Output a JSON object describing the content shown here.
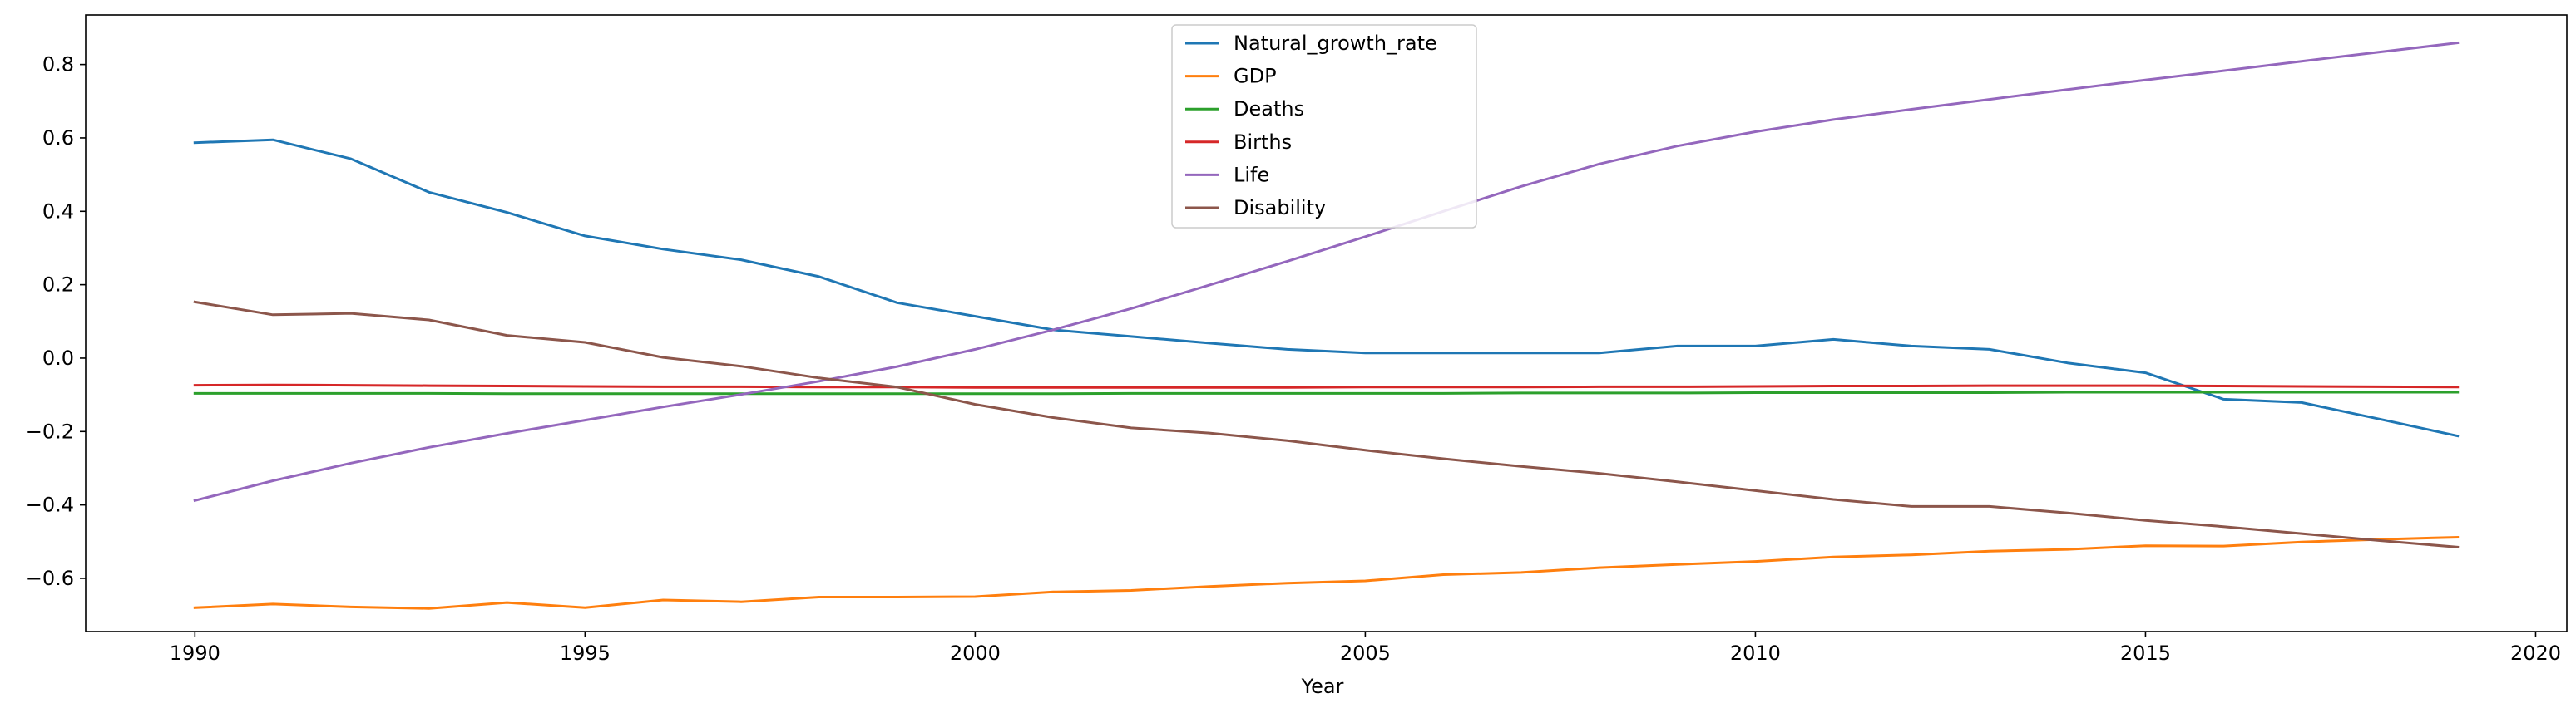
{
  "chart_data": {
    "type": "line",
    "title": "",
    "xlabel": "Year",
    "ylabel": "",
    "xlim": [
      1988.6,
      2020.4
    ],
    "ylim": [
      -0.745,
      0.935
    ],
    "xticks": [
      1990,
      1995,
      2000,
      2005,
      2010,
      2015,
      2020
    ],
    "yticks": [
      -0.6,
      -0.4,
      -0.2,
      0.0,
      0.2,
      0.4,
      0.6,
      0.8
    ],
    "ytick_labels": [
      "−0.6",
      "−0.4",
      "−0.2",
      "0.0",
      "0.2",
      "0.4",
      "0.6",
      "0.8"
    ],
    "grid": false,
    "legend_position": "top-center",
    "x": [
      1990,
      1991,
      1992,
      1993,
      1994,
      1995,
      1996,
      1997,
      1998,
      1999,
      2000,
      2001,
      2002,
      2003,
      2004,
      2005,
      2006,
      2007,
      2008,
      2009,
      2010,
      2011,
      2012,
      2013,
      2014,
      2015,
      2016,
      2017,
      2018,
      2019
    ],
    "series": [
      {
        "name": "Natural_growth_rate",
        "color": "#1f77b4",
        "values": [
          0.587,
          0.595,
          0.543,
          0.452,
          0.397,
          0.333,
          0.297,
          0.268,
          0.222,
          0.151,
          0.114,
          0.077,
          0.059,
          0.041,
          0.024,
          0.014,
          0.014,
          0.014,
          0.014,
          0.033,
          0.033,
          0.051,
          0.033,
          0.024,
          -0.013,
          -0.04,
          -0.112,
          -0.121,
          -0.166,
          -0.212
        ]
      },
      {
        "name": "GDP",
        "color": "#ff7f0e",
        "values": [
          -0.68,
          -0.67,
          -0.678,
          -0.682,
          -0.666,
          -0.68,
          -0.659,
          -0.664,
          -0.651,
          -0.651,
          -0.65,
          -0.637,
          -0.633,
          -0.622,
          -0.613,
          -0.607,
          -0.59,
          -0.584,
          -0.571,
          -0.562,
          -0.554,
          -0.542,
          -0.536,
          -0.526,
          -0.521,
          -0.511,
          -0.512,
          -0.501,
          -0.494,
          -0.488
        ]
      },
      {
        "name": "Deaths",
        "color": "#2ca02c",
        "values": [
          -0.096,
          -0.096,
          -0.096,
          -0.096,
          -0.097,
          -0.097,
          -0.097,
          -0.097,
          -0.097,
          -0.097,
          -0.097,
          -0.097,
          -0.096,
          -0.096,
          -0.096,
          -0.096,
          -0.096,
          -0.095,
          -0.095,
          -0.095,
          -0.094,
          -0.094,
          -0.094,
          -0.094,
          -0.093,
          -0.093,
          -0.093,
          -0.093,
          -0.093,
          -0.093
        ]
      },
      {
        "name": "Births",
        "color": "#d62728",
        "values": [
          -0.074,
          -0.073,
          -0.074,
          -0.075,
          -0.076,
          -0.077,
          -0.078,
          -0.078,
          -0.079,
          -0.079,
          -0.08,
          -0.08,
          -0.08,
          -0.08,
          -0.08,
          -0.079,
          -0.079,
          -0.079,
          -0.078,
          -0.078,
          -0.077,
          -0.076,
          -0.076,
          -0.075,
          -0.075,
          -0.075,
          -0.076,
          -0.077,
          -0.078,
          -0.079
        ]
      },
      {
        "name": "Life",
        "color": "#9467bd",
        "values": [
          -0.388,
          -0.334,
          -0.286,
          -0.243,
          -0.205,
          -0.169,
          -0.133,
          -0.099,
          -0.063,
          -0.023,
          0.024,
          0.077,
          0.135,
          0.199,
          0.264,
          0.331,
          0.4,
          0.468,
          0.529,
          0.578,
          0.617,
          0.65,
          0.678,
          0.705,
          0.732,
          0.758,
          0.783,
          0.809,
          0.834,
          0.859
        ]
      },
      {
        "name": "Disability",
        "color": "#8c564b",
        "values": [
          0.153,
          0.118,
          0.122,
          0.104,
          0.062,
          0.043,
          0.002,
          -0.022,
          -0.054,
          -0.079,
          -0.126,
          -0.162,
          -0.19,
          -0.204,
          -0.225,
          -0.251,
          -0.274,
          -0.295,
          -0.314,
          -0.337,
          -0.361,
          -0.385,
          -0.404,
          -0.404,
          -0.422,
          -0.442,
          -0.459,
          -0.478,
          -0.497,
          -0.515
        ]
      }
    ]
  }
}
